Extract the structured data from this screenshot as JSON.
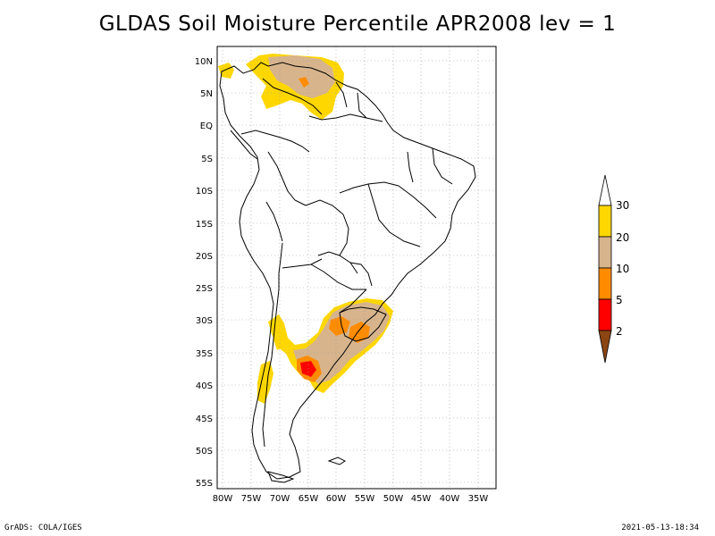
{
  "title": "GLDAS Soil Moisture Percentile APR2008 lev = 1",
  "footer": {
    "left": "GrADS: COLA/IGES",
    "right": "2021-05-13-18:34"
  },
  "map": {
    "lat_labels": [
      "10N",
      "5N",
      "EQ",
      "5S",
      "10S",
      "15S",
      "20S",
      "25S",
      "30S",
      "35S",
      "40S",
      "45S",
      "50S",
      "55S"
    ],
    "lon_labels": [
      "80W",
      "75W",
      "70W",
      "65W",
      "60W",
      "55W",
      "50W",
      "45W",
      "40W",
      "35W"
    ],
    "grid": "dotted",
    "region": "South America"
  },
  "colorbar": {
    "labels": [
      "30",
      "20",
      "10",
      "5",
      "2"
    ],
    "colors": {
      "above_30": "#ffffff",
      "20_30": "#ffd700",
      "10_20": "#d7b48c",
      "5_10": "#ff8c00",
      "2_5": "#ff0000",
      "below_2": "#8b4513"
    }
  }
}
